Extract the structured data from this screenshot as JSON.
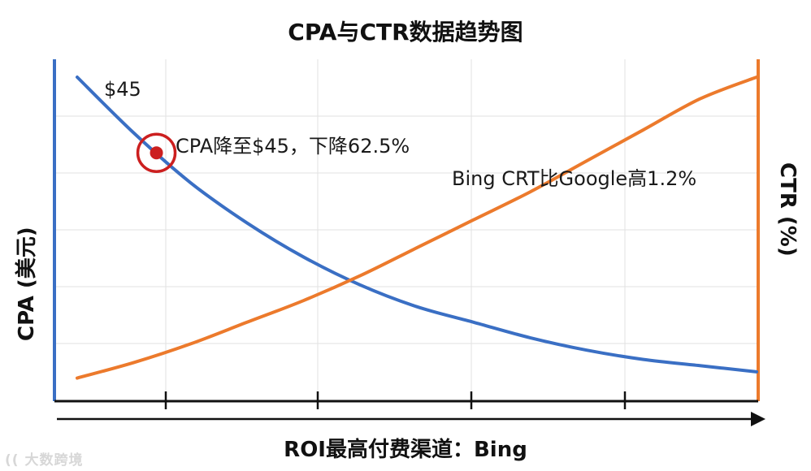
{
  "chart_data": {
    "type": "line",
    "title": "CPA与CTR数据趋势图",
    "xlabel": "ROI最高付费渠道：Bing",
    "ylabel_left": "CPA (美元)",
    "ylabel_right": "CTR (%)",
    "grid": true,
    "series": [
      {
        "axis": "left",
        "color": "#3a6fc4",
        "values": [
          1.0,
          0.82,
          0.66,
          0.53,
          0.42,
          0.33,
          0.26,
          0.21,
          0.16,
          0.12,
          0.09,
          0.07,
          0.05
        ]
      },
      {
        "axis": "right",
        "color": "#ec7a2c",
        "values": [
          0.03,
          0.08,
          0.14,
          0.21,
          0.28,
          0.36,
          0.45,
          0.54,
          0.63,
          0.73,
          0.83,
          0.93,
          1.0
        ]
      }
    ],
    "marker": {
      "series": 0,
      "index": 1.4,
      "color": "#cc1f1f"
    },
    "annotations": [
      {
        "id": "a45",
        "text": "$45"
      },
      {
        "id": "cpa-drop",
        "text": "CPA降至$45，下降62.5%"
      },
      {
        "id": "bing-ctr",
        "text": "Bing CRT比Google高1.2%"
      }
    ]
  },
  "watermark": "大数跨境"
}
